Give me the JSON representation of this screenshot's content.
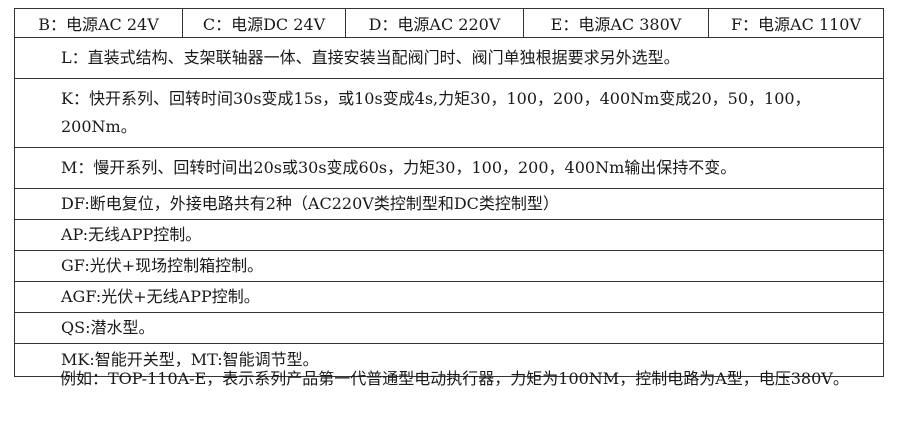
{
  "power_options": [
    "B：电源AC 24V",
    "C：电源DC 24V",
    "D：电源AC 220V",
    "E：电源AC 380V",
    "F：电源AC 110V"
  ],
  "rows": [
    "L：直装式结构、支架联轴器一体、直接安装当配阀门时、阀门单独根据要求另外选型。",
    "K：快开系列、回转时间30s变成15s，或10s变成4s,力矩30，100，200，400Nm变成20，50，100，200Nm。",
    "M：慢开系列、回转时间出20s或30s变成60s，力矩30，100，200，400Nm输出保持不变。",
    "DF:断电复位，外接电路共有2种（AC220V类控制型和DC类控制型）",
    "AP:无线APP控制。",
    "GF:光伏+现场控制箱控制。",
    "AGF:光伏+无线APP控制。",
    "QS:潜水型。",
    "MK:智能开关型，MT:智能调节型。"
  ],
  "example": "例如：TOP-110A-E，表示系列产品第一代普通型电动执行器，力矩为100NM，控制电路为A型，电压380V。"
}
